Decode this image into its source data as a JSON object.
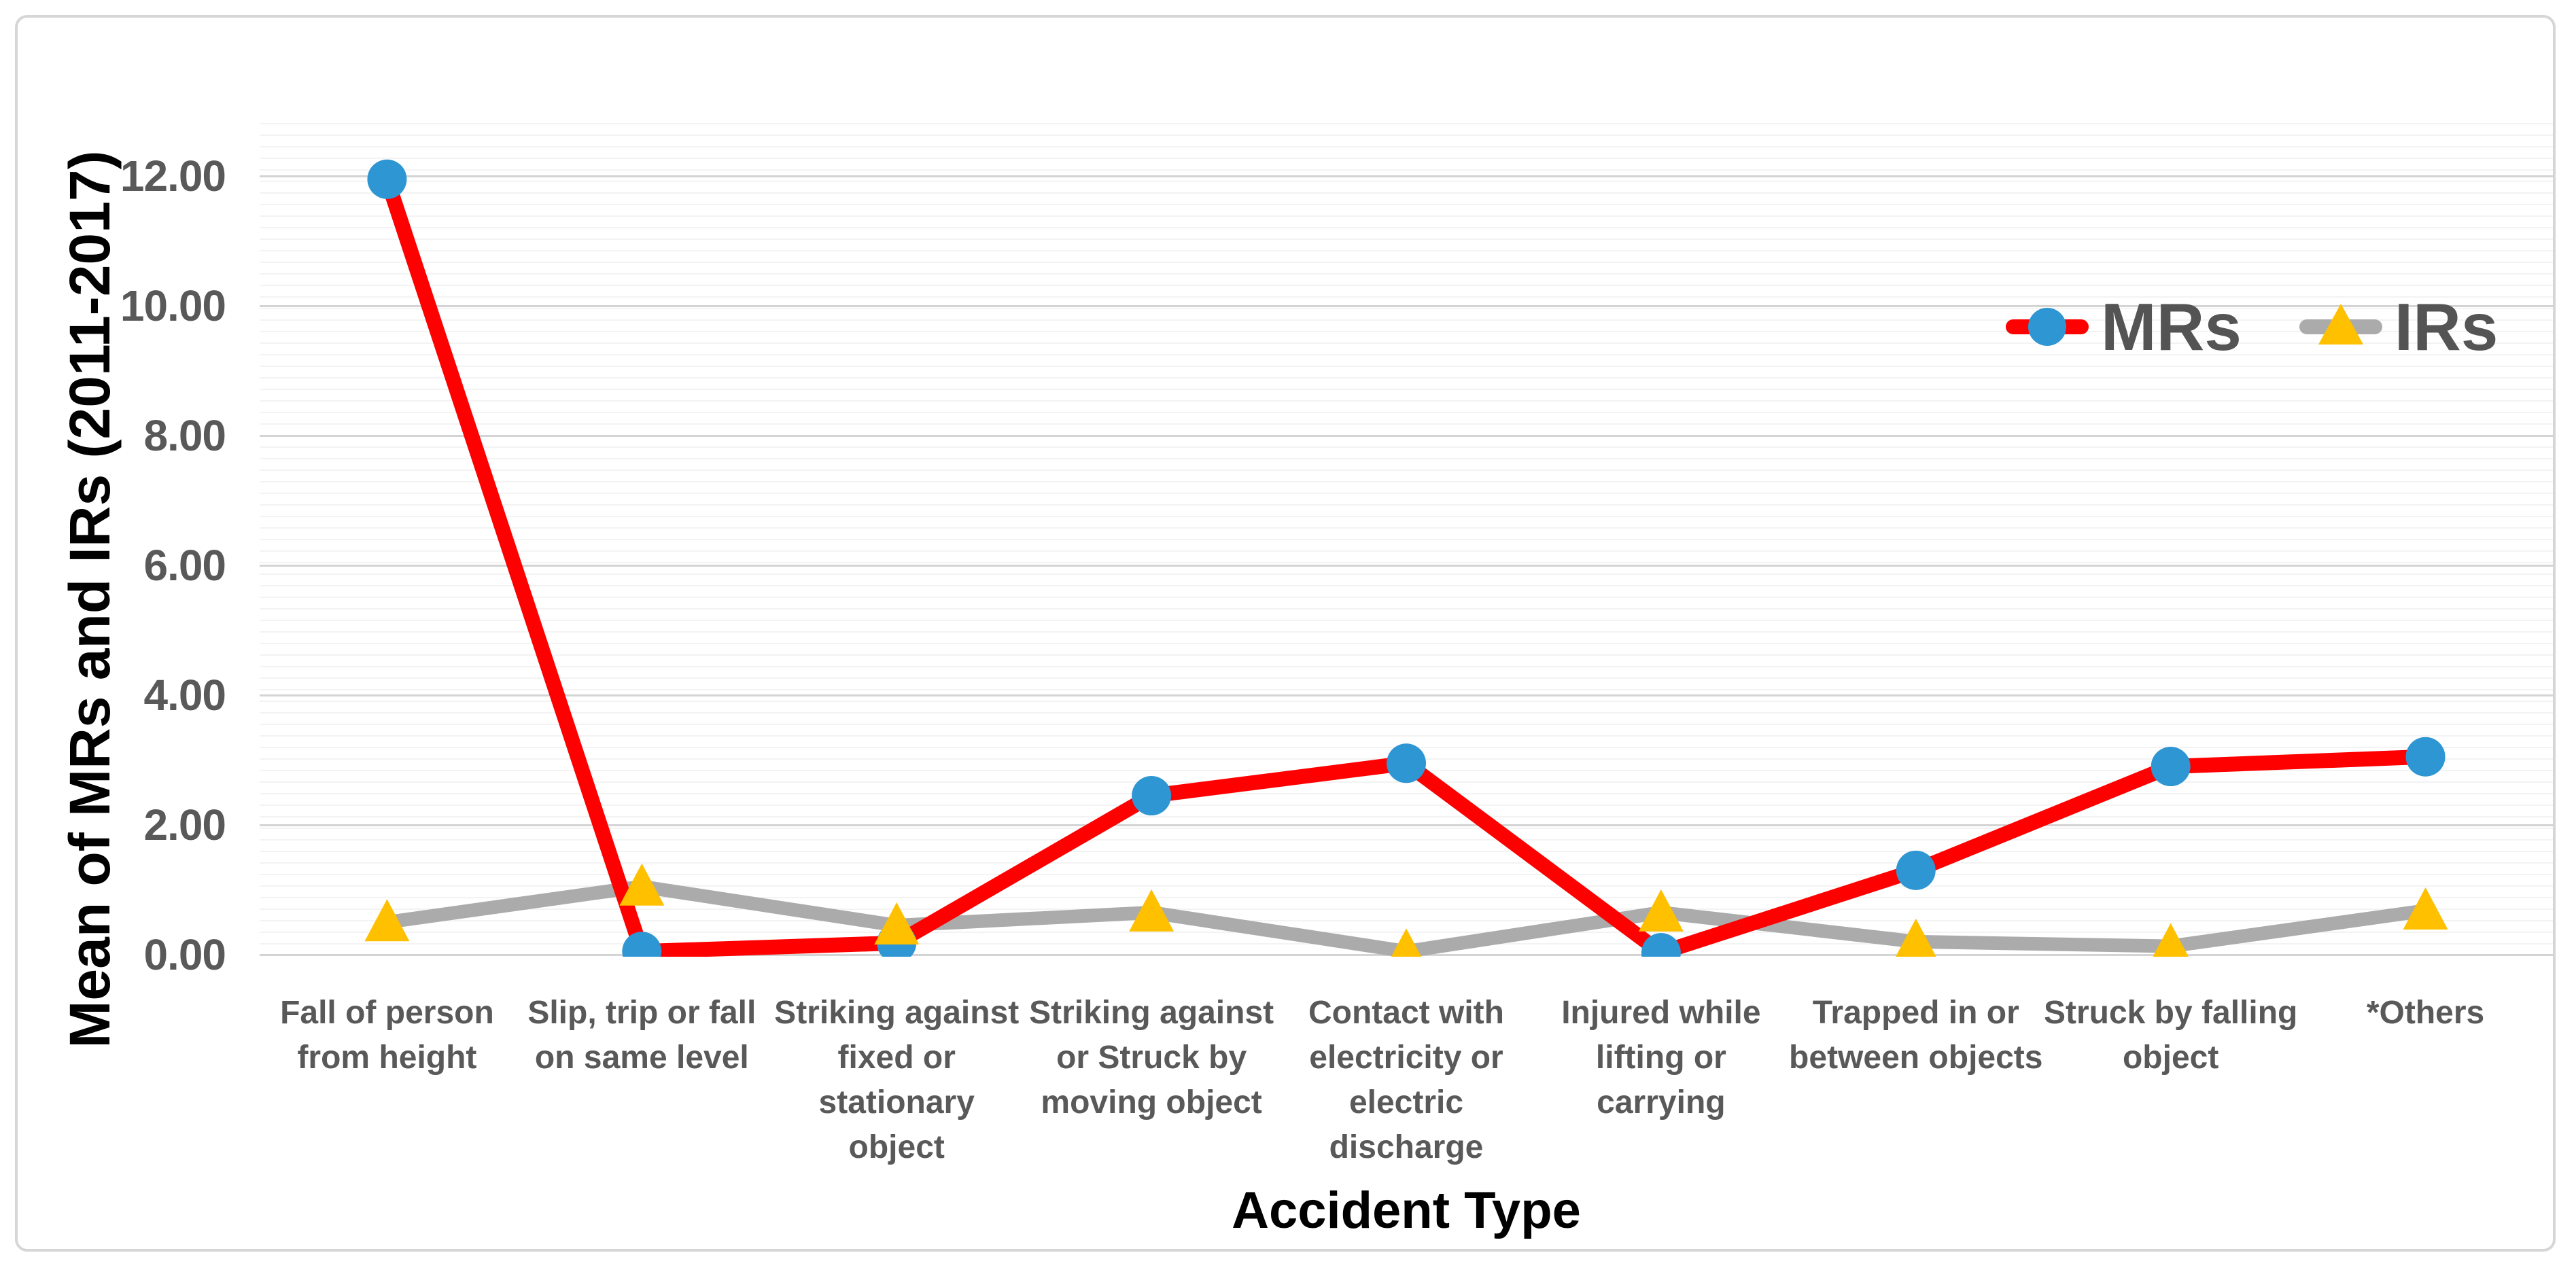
{
  "chart_data": {
    "type": "line",
    "title": "",
    "xlabel": "Accident Type",
    "ylabel": "Mean of MRs and IRs (2011-2017)",
    "ylim": [
      0,
      12
    ],
    "yticks": [
      0,
      2,
      4,
      6,
      8,
      10,
      12
    ],
    "ytick_labels": [
      "0.00",
      "2.00",
      "4.00",
      "6.00",
      "8.00",
      "10.00",
      "12.00"
    ],
    "grid": true,
    "legend_position": "top-right-inside",
    "categories": [
      "Fall of person from height",
      "Slip, trip or fall on same level",
      "Striking against fixed or stationary object",
      "Striking against or Struck by moving object",
      "Contact with electricity or electric discharge",
      "Injured while lifting or carrying",
      "Trapped in or between objects",
      "Struck by falling object",
      "*Others"
    ],
    "category_labels_display": [
      "Fall of person\nfrom height",
      "Slip, trip or fall\non same level",
      "Striking against\nfixed or\nstationary\nobject",
      "Striking against\nor Struck by\nmoving object",
      "Contact with\nelectricity or\nelectric\ndischarge",
      "Injured while\nlifting or\ncarrying",
      "Trapped in or\nbetween objects",
      "Struck by falling\nobject",
      "*Others"
    ],
    "series": [
      {
        "name": "MRs",
        "line_color": "#FF0000",
        "marker": "circle",
        "marker_color": "#2E96D3",
        "values": [
          11.95,
          0.05,
          0.18,
          2.45,
          2.95,
          0.03,
          1.3,
          2.9,
          3.05
        ]
      },
      {
        "name": "IRs",
        "line_color": "#ABABAB",
        "marker": "triangle",
        "marker_color": "#FFC000",
        "values": [
          0.5,
          1.05,
          0.45,
          0.65,
          0.05,
          0.65,
          0.2,
          0.13,
          0.68
        ]
      }
    ]
  },
  "colors": {
    "grid_major": "#d4d4d4",
    "tick_text": "#595959",
    "category_text": "#595959",
    "legend_text": "#545454",
    "axis_title_text": "#000000",
    "card_border": "#d6d6d6"
  }
}
